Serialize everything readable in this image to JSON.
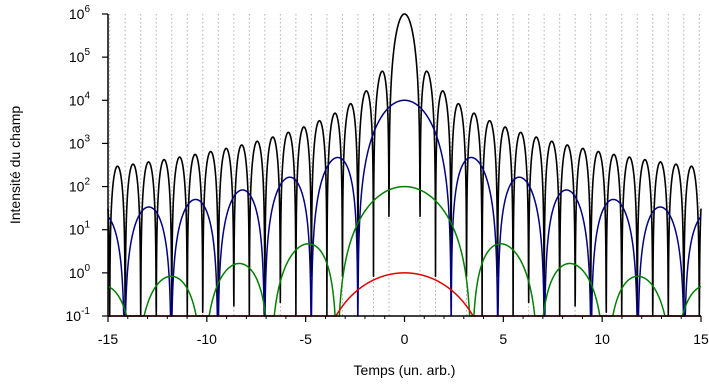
{
  "chart_data": {
    "type": "line",
    "title": "",
    "xlabel": "Temps (un. arb.)",
    "ylabel": "Intensité du champ",
    "xlim": [
      -15,
      15
    ],
    "ylim": [
      0.1,
      1000000
    ],
    "yscale": "log",
    "x_ticks": [
      -15,
      -10,
      -5,
      0,
      5,
      10,
      15
    ],
    "x_tick_labels": [
      "-15",
      "-10",
      "-5",
      "0",
      "5",
      "10",
      "15"
    ],
    "y_ticks": [
      {
        "mantissa": "10",
        "exponent": "-1",
        "value": 0.1
      },
      {
        "mantissa": "10",
        "exponent": "0",
        "value": 1
      },
      {
        "mantissa": "10",
        "exponent": "1",
        "value": 10
      },
      {
        "mantissa": "10",
        "exponent": "2",
        "value": 100
      },
      {
        "mantissa": "10",
        "exponent": "3",
        "value": 1000
      },
      {
        "mantissa": "10",
        "exponent": "4",
        "value": 10000
      },
      {
        "mantissa": "10",
        "exponent": "5",
        "value": 100000
      },
      {
        "mantissa": "10",
        "exponent": "6",
        "value": 1000000
      }
    ],
    "vertical_gridlines": "dotted, every 0.785 time units",
    "series": [
      {
        "color": "#000000",
        "peak": 1000000,
        "zero_spacing": 0.785,
        "formula": "peak * sinc^2(pi*t/zero_spacing)"
      },
      {
        "color": "#000080",
        "peak": 10000,
        "zero_spacing": 2.36,
        "formula": "peak * sinc^2(pi*t/zero_spacing)"
      },
      {
        "color": "#008000",
        "peak": 100,
        "zero_spacing": 3.4,
        "formula": "peak * sinc^2(pi*t/zero_spacing)"
      },
      {
        "color": "#e00000",
        "peak": 1,
        "zero_spacing": 4.7,
        "formula": "peak * sinc^2(pi*t/zero_spacing)"
      }
    ],
    "grid_color": "#b0b0b0"
  }
}
